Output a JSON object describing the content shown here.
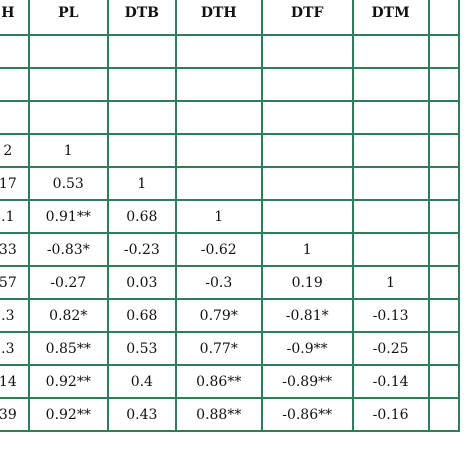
{
  "headers": [
    "H",
    "PL",
    "DTB",
    "DTH",
    "DTF",
    "DTM",
    ""
  ],
  "rows": [
    [
      "",
      "",
      "",
      "",
      "",
      "",
      ""
    ],
    [
      "",
      "",
      "",
      "",
      "",
      "",
      ""
    ],
    [
      "",
      "",
      "",
      "",
      "",
      "",
      ""
    ],
    [
      "2",
      "1",
      "",
      "",
      "",
      "",
      ""
    ],
    [
      "17",
      "0.53",
      "1",
      "",
      "",
      "",
      ""
    ],
    [
      ".1",
      "0.91**",
      "0.68",
      "1",
      "",
      "",
      ""
    ],
    [
      "33",
      "-0.83*",
      "-0.23",
      "-0.62",
      "1",
      "",
      ""
    ],
    [
      "57",
      "-0.27",
      "0.03",
      "-0.3",
      "0.19",
      "1",
      ""
    ],
    [
      ".3",
      "0.82*",
      "0.68",
      "0.79*",
      "-0.81*",
      "-0.13",
      ""
    ],
    [
      ".3",
      "0.85**",
      "0.53",
      "0.77*",
      "-0.9**",
      "-0.25",
      ""
    ],
    [
      "14",
      "0.92**",
      "0.4",
      "0.86**",
      "-0.89**",
      "-0.14",
      ""
    ],
    [
      "39",
      "0.92**",
      "0.43",
      "0.88**",
      "-0.86**",
      "-0.16",
      ""
    ]
  ]
}
